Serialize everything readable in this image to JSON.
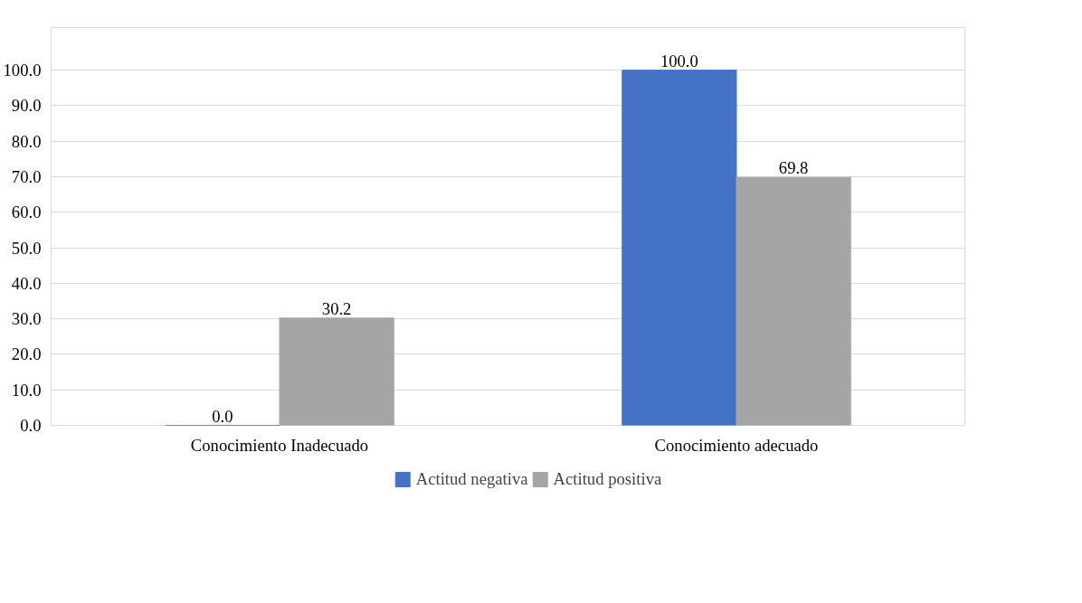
{
  "chart_data": {
    "type": "bar",
    "categories": [
      "Conocimiento Inadecuado",
      "Conocimiento adecuado"
    ],
    "series": [
      {
        "name": "Actitud negativa",
        "color": "#4472c4",
        "values": [
          0.0,
          100.0
        ],
        "value_labels": [
          "0.0",
          "100.0"
        ]
      },
      {
        "name": "Actitud positiva",
        "color": "#a5a5a5",
        "values": [
          30.2,
          69.8
        ],
        "value_labels": [
          "30.2",
          "69.8"
        ]
      }
    ],
    "ylim": [
      0,
      100
    ],
    "yticks": [
      {
        "value": 0,
        "label": "0.0"
      },
      {
        "value": 10,
        "label": "10.0"
      },
      {
        "value": 20,
        "label": "20.0"
      },
      {
        "value": 30,
        "label": "30.0"
      },
      {
        "value": 40,
        "label": "40.0"
      },
      {
        "value": 50,
        "label": "50.0"
      },
      {
        "value": 60,
        "label": "60.0"
      },
      {
        "value": 70,
        "label": "70.0"
      },
      {
        "value": 80,
        "label": "80.0"
      },
      {
        "value": 90,
        "label": "90.0"
      },
      {
        "value": 100,
        "label": "100.0"
      }
    ],
    "grid": "y",
    "legend": "bottom"
  }
}
